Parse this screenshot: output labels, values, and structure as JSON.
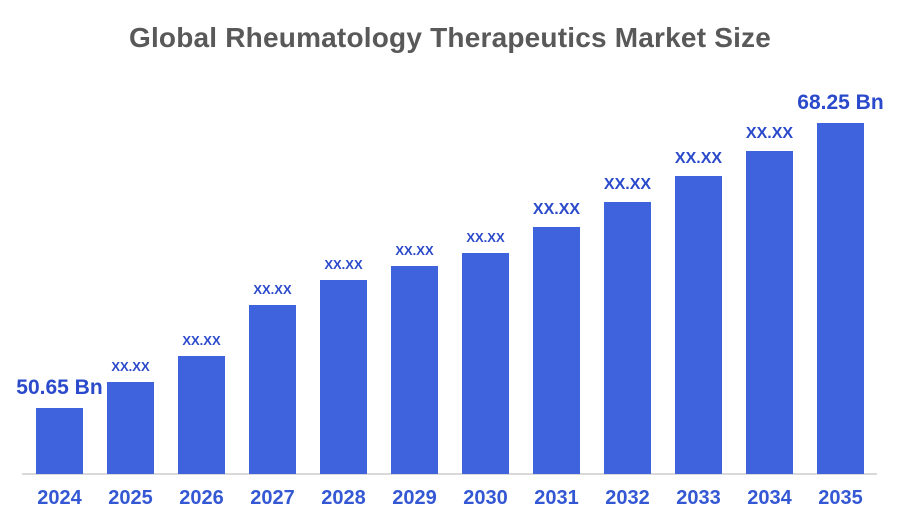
{
  "page": {
    "background_color": "#ffffff"
  },
  "chart_data": {
    "type": "bar",
    "title": "Global Rheumatology Therapeutics Market Size",
    "title_color": "#595959",
    "categories": [
      "2024",
      "2025",
      "2026",
      "2027",
      "2028",
      "2029",
      "2030",
      "2031",
      "2032",
      "2033",
      "2034",
      "2035"
    ],
    "values": [
      50.65,
      52.25,
      53.85,
      57.0,
      58.55,
      59.4,
      60.2,
      61.8,
      63.4,
      65.0,
      66.55,
      68.25
    ],
    "values_estimated_from_bar_heights": true,
    "value_labels": [
      "50.65 Bn",
      "XX.XX",
      "XX.XX",
      "XX.XX",
      "XX.XX",
      "XX.XX",
      "XX.XX",
      "XX.XX",
      "XX.XX",
      "XX.XX",
      "XX.XX",
      "68.25 Bn"
    ],
    "unit": "Bn",
    "xlabel": "",
    "ylabel": "",
    "ylim_visual": [
      50.65,
      68.25
    ],
    "grid": false,
    "legend": false,
    "y_axis_shown": false,
    "bar_color": "#3E63DC",
    "value_label_color": "#2B4ACB",
    "category_label_color": "#3458D4",
    "axis_line_color": "#D9D9D9"
  }
}
